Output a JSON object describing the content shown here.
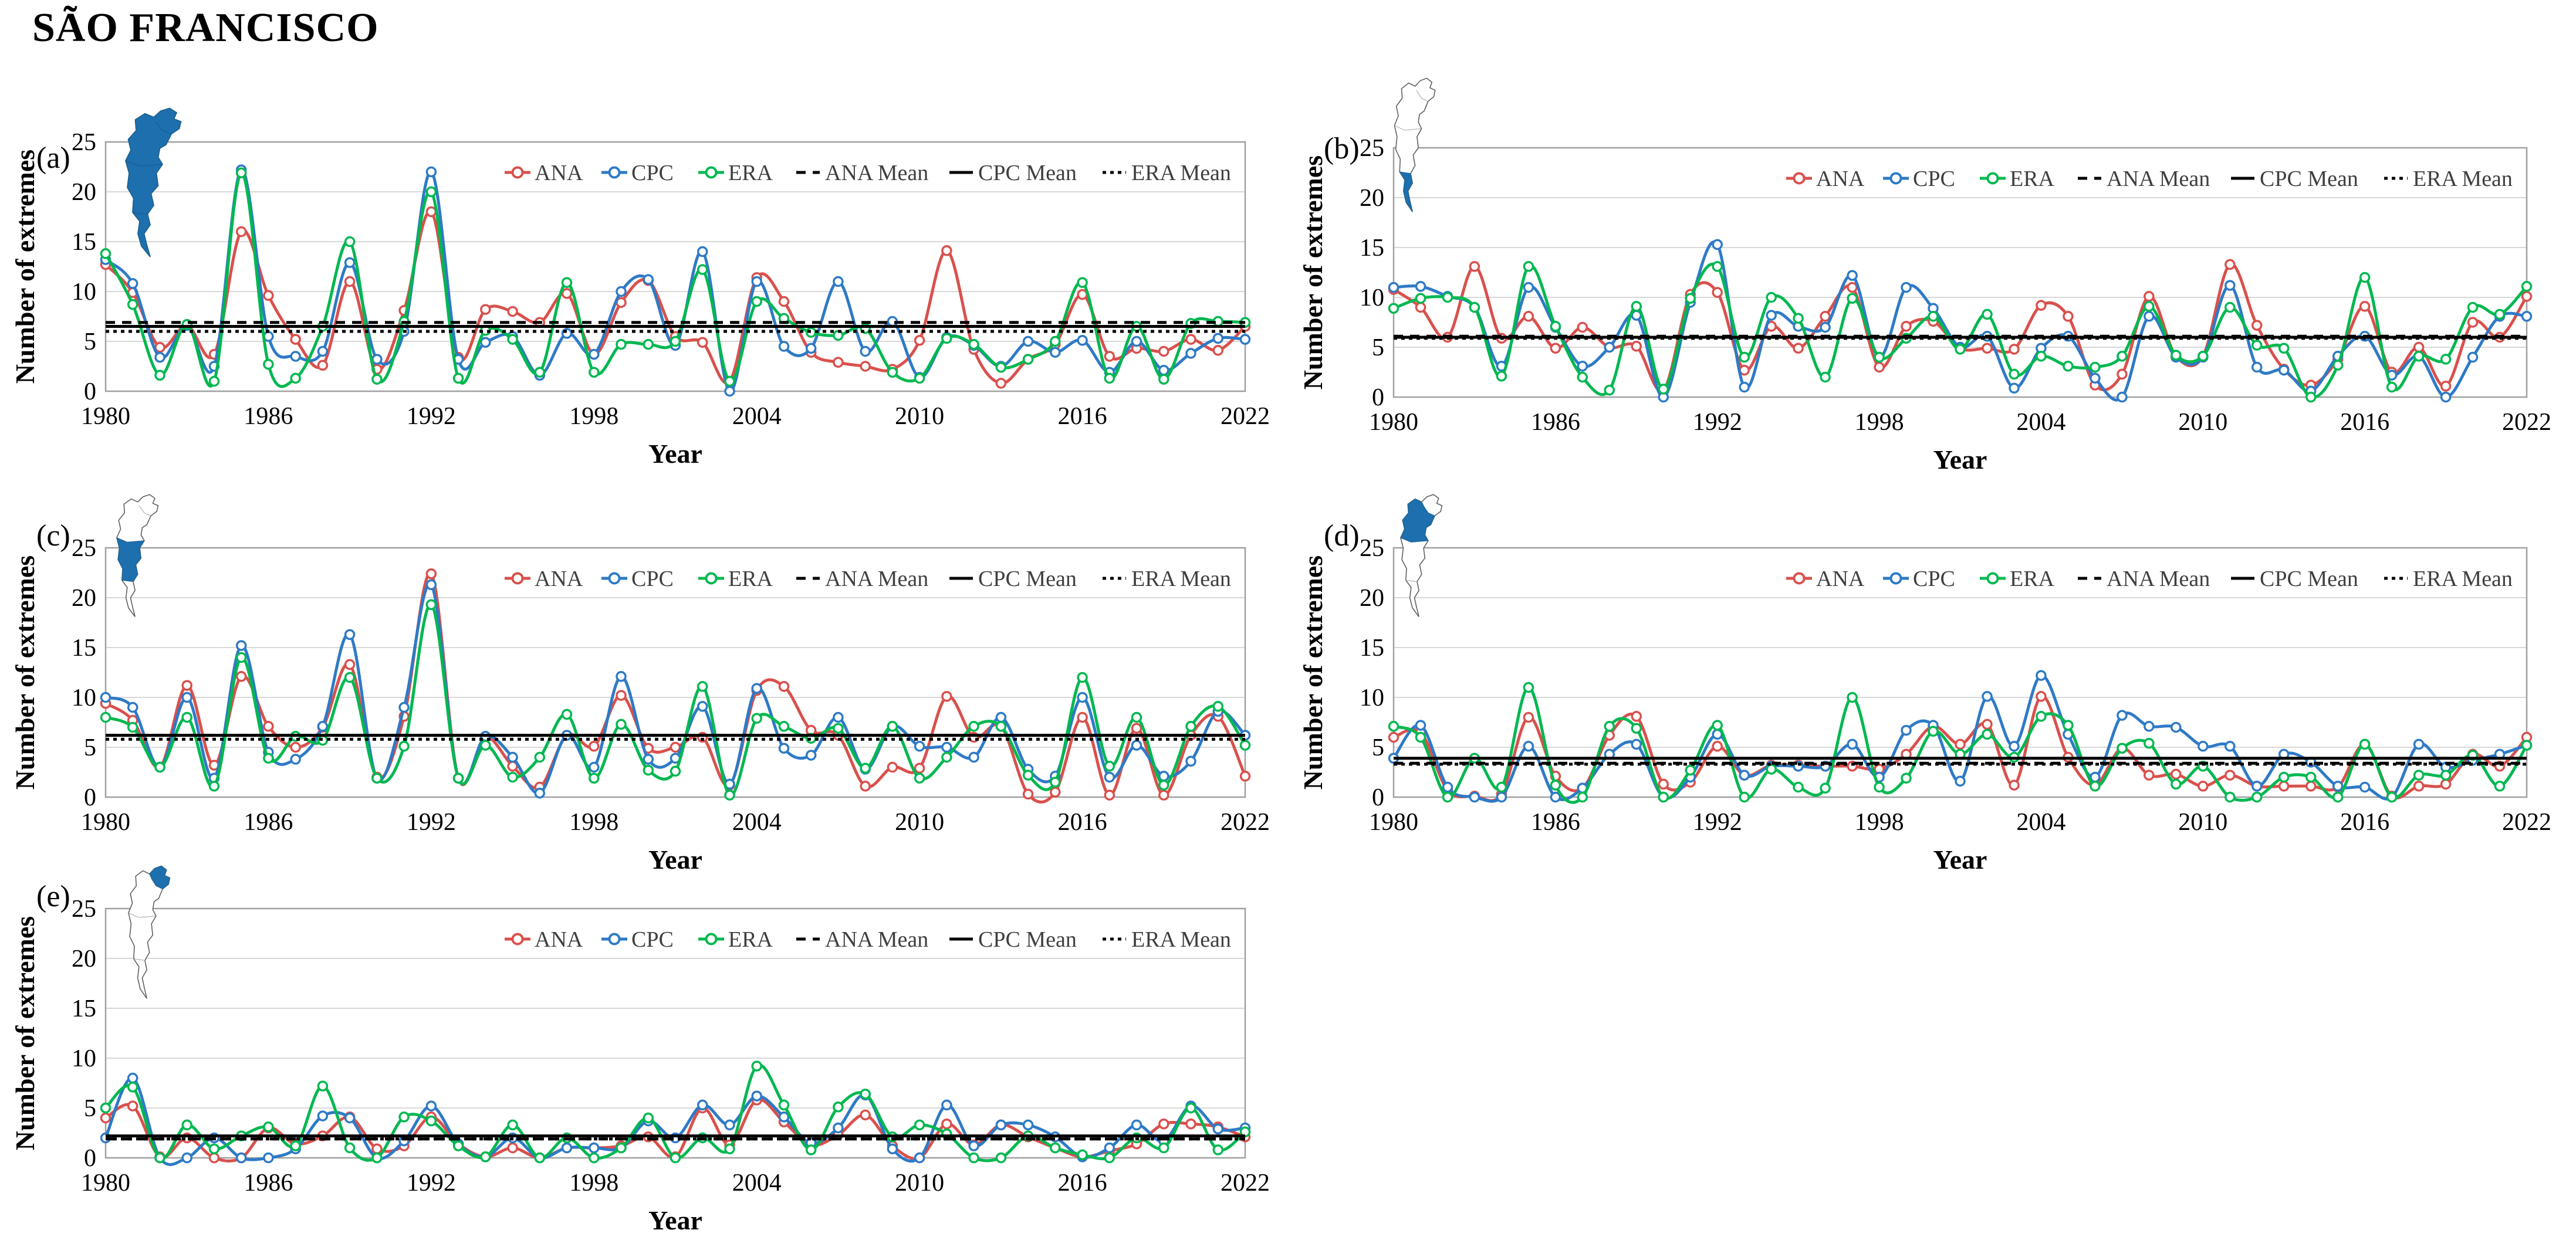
{
  "title": "SÃO FRANCISCO",
  "axis": {
    "x_label": "Year",
    "y_label": "Number of extremes",
    "x_ticks": [
      1980,
      1986,
      1992,
      1998,
      2004,
      2010,
      2016,
      2022
    ],
    "y_ticks": [
      0,
      5,
      10,
      15,
      20,
      25
    ],
    "ylim": [
      0,
      25
    ]
  },
  "legend": {
    "ana": "ANA",
    "cpc": "CPC",
    "era": "ERA",
    "ana_mean": "ANA Mean",
    "cpc_mean": "CPC Mean",
    "era_mean": "ERA Mean"
  },
  "colors": {
    "ana": "#D9504C",
    "cpc": "#2E7AC6",
    "era": "#00B850",
    "mean": "#000000",
    "map_highlight": "#1D6FAE",
    "grid": "#D8D8D8",
    "frame": "#A0A0A0",
    "legend_text": "#3F3F3F",
    "text": "#000000"
  },
  "years": [
    1980,
    1981,
    1982,
    1983,
    1984,
    1985,
    1986,
    1987,
    1988,
    1989,
    1990,
    1991,
    1992,
    1993,
    1994,
    1995,
    1996,
    1997,
    1998,
    1999,
    2000,
    2001,
    2002,
    2003,
    2004,
    2005,
    2006,
    2007,
    2008,
    2009,
    2010,
    2011,
    2012,
    2013,
    2014,
    2015,
    2016,
    2017,
    2018,
    2019,
    2020,
    2021,
    2022
  ],
  "chart_data": [
    {
      "panel": "(a)",
      "type": "line",
      "map_highlight": "a",
      "xlabel": "Year",
      "ylabel": "Number of extremes",
      "ylim": [
        0,
        25
      ],
      "series": [
        {
          "name": "ANA",
          "color_key": "ana",
          "values": [
            12.7,
            9.9,
            4.4,
            6.6,
            3.7,
            16,
            9.6,
            5.2,
            2.6,
            11,
            2.2,
            8.1,
            18,
            3.4,
            8.2,
            8,
            6.9,
            9.8,
            3.7,
            8.9,
            11.1,
            5.5,
            4.9,
            1,
            11.4,
            9,
            3.9,
            2.9,
            2.5,
            2.2,
            5.1,
            14.1,
            4.2,
            0.8,
            3.2,
            4.7,
            9.7,
            3.5,
            4.3,
            4,
            5.2,
            4.1,
            6.5
          ]
        },
        {
          "name": "CPC",
          "color_key": "cpc",
          "values": [
            13.2,
            10.8,
            3.4,
            6.6,
            2.5,
            22.2,
            5.5,
            3.5,
            4,
            12.9,
            3.2,
            6,
            22,
            3.2,
            4.9,
            5.5,
            1.6,
            5.8,
            3.7,
            10,
            11.2,
            4.6,
            14,
            0,
            11,
            4.5,
            4.3,
            11,
            4,
            7,
            1.4,
            5.4,
            4.6,
            2.5,
            5,
            3.9,
            5.1,
            1.9,
            5,
            2.1,
            3.8,
            5.3,
            5.2
          ]
        },
        {
          "name": "ERA",
          "color_key": "era",
          "values": [
            13.8,
            8.7,
            1.6,
            6.7,
            1,
            21.9,
            2.7,
            1.3,
            6.5,
            15,
            1.2,
            7,
            20,
            1.3,
            6.1,
            5.2,
            1.9,
            10.9,
            1.9,
            4.7,
            4.7,
            5,
            12.2,
            1,
            9,
            7.3,
            5.9,
            5.6,
            6.3,
            1.9,
            1.3,
            5.3,
            4.7,
            2.4,
            3.2,
            5,
            10.9,
            1.3,
            6.5,
            1.2,
            6.8,
            7,
            6.9
          ]
        }
      ],
      "means": {
        "ana": 6.9,
        "cpc": 6.5,
        "era": 6.0
      }
    },
    {
      "panel": "(b)",
      "type": "line",
      "map_highlight": "b",
      "xlabel": "Year",
      "ylabel": "Number of extremes",
      "ylim": [
        0,
        25
      ],
      "series": [
        {
          "name": "ANA",
          "color_key": "ana",
          "values": [
            10.8,
            9,
            6,
            13.1,
            5.9,
            8.1,
            4.9,
            7,
            5,
            5.1,
            0.7,
            10.3,
            10.5,
            2.7,
            7.1,
            4.9,
            8.1,
            11,
            3,
            7.1,
            7.6,
            4.9,
            4.9,
            4.8,
            9.2,
            8.1,
            1.2,
            2.3,
            10.1,
            4.1,
            4.1,
            13.3,
            7.2,
            2.8,
            1.2,
            3.8,
            9.1,
            2.5,
            5,
            1.1,
            7.5,
            6,
            10.1
          ]
        },
        {
          "name": "CPC",
          "color_key": "cpc",
          "values": [
            11,
            11.1,
            10.1,
            9,
            3.1,
            11,
            7,
            3.1,
            5,
            8.2,
            0,
            9.5,
            15.3,
            1,
            8.2,
            7.1,
            7,
            12.2,
            4,
            11,
            8.9,
            5,
            6.1,
            0.9,
            4.9,
            6.1,
            1.9,
            0,
            8.1,
            4,
            4,
            11.2,
            3,
            2.7,
            0.6,
            4.1,
            6.1,
            2.2,
            4.1,
            0,
            4,
            8.1,
            8.1
          ]
        },
        {
          "name": "ERA",
          "color_key": "era",
          "values": [
            8.9,
            9.9,
            10,
            9,
            2.1,
            13.1,
            7.1,
            2,
            0.7,
            9.1,
            0.8,
            9.9,
            13.1,
            4,
            10,
            7.9,
            2,
            9.9,
            4,
            5.9,
            8.1,
            4.8,
            8.3,
            2.3,
            4.1,
            3.1,
            3,
            4.1,
            9.1,
            4.2,
            4.1,
            9,
            5.2,
            4.9,
            0,
            3.2,
            12,
            1,
            4.1,
            3.8,
            9,
            8.3,
            11.1
          ]
        }
      ],
      "means": {
        "ana": 6.1,
        "cpc": 6.0,
        "era": 5.9
      }
    },
    {
      "panel": "(c)",
      "type": "line",
      "map_highlight": "c",
      "xlabel": "Year",
      "ylabel": "Number of extremes",
      "ylim": [
        0,
        25
      ],
      "series": [
        {
          "name": "ANA",
          "color_key": "ana",
          "values": [
            9.4,
            7.7,
            3,
            11.2,
            3.2,
            12.1,
            7.1,
            5,
            7,
            13.3,
            2,
            8.1,
            22.4,
            1.9,
            6,
            3.1,
            1,
            6.2,
            5.1,
            10.2,
            4.9,
            5,
            6,
            1.2,
            10.7,
            11.1,
            6.7,
            6.2,
            1.1,
            3,
            2.9,
            10.1,
            6,
            7.1,
            0.3,
            0.5,
            8,
            0.2,
            6.9,
            0.2,
            6.2,
            8.1,
            2.1
          ]
        },
        {
          "name": "CPC",
          "color_key": "cpc",
          "values": [
            10,
            9,
            3,
            10,
            1.9,
            15.2,
            4.5,
            3.8,
            7.1,
            16.3,
            1.9,
            9,
            21.3,
            1.9,
            6.1,
            4,
            0.4,
            6.2,
            3,
            12.1,
            3.8,
            3.9,
            9.1,
            1.3,
            10.9,
            4.9,
            4.2,
            8,
            2.8,
            7.1,
            5.1,
            5,
            4,
            8,
            2.8,
            2.1,
            10,
            2,
            5.2,
            2.1,
            3.6,
            8.6,
            6.2
          ]
        },
        {
          "name": "ERA",
          "color_key": "era",
          "values": [
            8,
            7,
            3,
            8,
            1.1,
            14,
            3.9,
            6.1,
            5.7,
            12,
            1.9,
            5.1,
            19.3,
            1.9,
            5.2,
            2,
            4,
            8.3,
            1.9,
            7.3,
            2.7,
            2.6,
            11.1,
            0.2,
            7.9,
            7.1,
            5.9,
            6.9,
            2.9,
            7.1,
            1.9,
            4,
            7.1,
            7.1,
            2.2,
            1.5,
            12,
            3.1,
            8,
            1.2,
            7.1,
            9.1,
            5.2
          ]
        }
      ],
      "means": {
        "ana": 6.2,
        "cpc": 6.2,
        "era": 5.8
      }
    },
    {
      "panel": "(d)",
      "type": "line",
      "map_highlight": "d",
      "xlabel": "Year",
      "ylabel": "Number of extremes",
      "ylim": [
        0,
        25
      ],
      "series": [
        {
          "name": "ANA",
          "color_key": "ana",
          "values": [
            6,
            6.5,
            0.7,
            0.1,
            0.3,
            8,
            2.1,
            0.9,
            6.2,
            8.1,
            1.3,
            1.5,
            5.1,
            2.2,
            3.2,
            3.2,
            3.1,
            3.1,
            2.8,
            4.3,
            7.1,
            5.3,
            7.3,
            1.2,
            10.1,
            4,
            1.2,
            4.9,
            2.2,
            2.3,
            1.1,
            2.2,
            1.1,
            1.1,
            1.1,
            1,
            5.3,
            0.1,
            1.1,
            1.3,
            4.3,
            3.1,
            6
          ]
        },
        {
          "name": "CPC",
          "color_key": "cpc",
          "values": [
            3.9,
            7.2,
            1,
            0,
            0,
            5.1,
            0,
            0.9,
            4.3,
            5.3,
            0,
            2,
            6.3,
            2.2,
            3.1,
            3.1,
            3.1,
            5.3,
            2,
            6.7,
            7.2,
            1.6,
            10.1,
            5.1,
            12.2,
            6.3,
            2,
            8.2,
            7.1,
            7,
            5.1,
            5.1,
            1.1,
            4.3,
            3.5,
            1.1,
            1,
            0,
            5.3,
            3,
            3.7,
            4.3,
            5.2
          ]
        },
        {
          "name": "ERA",
          "color_key": "era",
          "values": [
            7.1,
            6,
            0,
            3.9,
            1,
            11,
            1.2,
            0,
            7.1,
            6.9,
            0,
            2.7,
            7.2,
            0,
            2.8,
            1,
            0.9,
            10,
            1,
            1.9,
            6.6,
            4.3,
            6.3,
            4,
            8.1,
            7.2,
            1.1,
            4.9,
            5.4,
            1.3,
            3.1,
            0,
            0,
            2,
            2,
            0,
            5.3,
            0,
            2.2,
            2.2,
            4.2,
            1.1,
            5.2
          ]
        }
      ],
      "means": {
        "ana": 3.4,
        "cpc": 3.9,
        "era": 3.3
      }
    },
    {
      "panel": "(e)",
      "type": "line",
      "map_highlight": "e",
      "xlabel": "Year",
      "ylabel": "Number of extremes",
      "ylim": [
        0,
        25
      ],
      "series": [
        {
          "name": "ANA",
          "color_key": "ana",
          "values": [
            4,
            5.2,
            0.1,
            2,
            0,
            0,
            3,
            1.4,
            2.2,
            4.1,
            0.9,
            1.2,
            4.1,
            1.4,
            0.1,
            1,
            0,
            1,
            1,
            1.2,
            2.1,
            0.1,
            5,
            1.3,
            5.8,
            3.6,
            1.3,
            2.3,
            4.3,
            1.2,
            0,
            3.4,
            1.3,
            3.3,
            2.1,
            1,
            0.1,
            0.7,
            1.4,
            3.4,
            3.4,
            3.1,
            2.1
          ]
        },
        {
          "name": "CPC",
          "color_key": "cpc",
          "values": [
            2,
            8,
            0,
            0,
            2,
            0,
            0,
            0.9,
            4.2,
            4,
            0,
            1.7,
            5.2,
            1.4,
            0.1,
            2,
            0,
            1,
            1,
            1,
            3.7,
            2,
            5.3,
            3.3,
            6.2,
            4.1,
            1.5,
            3,
            6.3,
            0.9,
            0,
            5.3,
            1.2,
            3.3,
            3.3,
            2.1,
            0.1,
            1,
            3.3,
            1.7,
            5.2,
            2.9,
            3
          ]
        },
        {
          "name": "ERA",
          "color_key": "era",
          "values": [
            5,
            7.1,
            0,
            3.3,
            0.9,
            2.2,
            3.1,
            1.2,
            7.2,
            1,
            0,
            4.1,
            3.7,
            1.2,
            0.1,
            3.3,
            0,
            2,
            0,
            1,
            4,
            0,
            2,
            0.9,
            9.2,
            5.3,
            0.8,
            5.1,
            6.4,
            2.1,
            3.3,
            2.4,
            0,
            0,
            2.2,
            1,
            0.3,
            0,
            2,
            1,
            5,
            0.8,
            2.6
          ]
        }
      ],
      "means": {
        "ana": 1.9,
        "cpc": 2.2,
        "era": 1.9
      }
    }
  ]
}
